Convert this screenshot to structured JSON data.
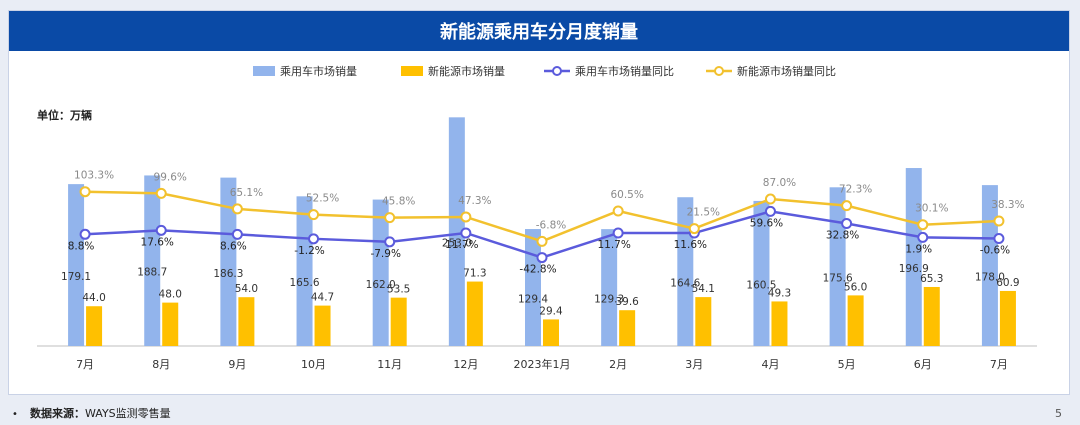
{
  "footer": {
    "bullet": "•",
    "source_label": "数据来源：",
    "source_name": "WAYS监测零售量",
    "page_number": "5"
  },
  "colors": {
    "title_bg": "#0a4aa6",
    "bar_passenger": "#92b4ec",
    "bar_nev": "#ffc000",
    "line_passenger_yoy": "#5b5bdc",
    "line_nev_yoy": "#f2c12e"
  },
  "chart_data": {
    "type": "bar",
    "title": "新能源乘用车分月度销量",
    "unit_label": "单位：万辆",
    "categories": [
      "7月",
      "8月",
      "9月",
      "10月",
      "11月",
      "12月",
      "2023年1月",
      "2月",
      "3月",
      "4月",
      "5月",
      "6月",
      "7月"
    ],
    "series": [
      {
        "name": "乘用车市场销量",
        "kind": "bar",
        "values": [
          179.1,
          188.7,
          186.3,
          165.6,
          162.0,
          253.0,
          129.4,
          129.3,
          164.6,
          160.5,
          175.6,
          196.9,
          178.0
        ],
        "labels": [
          "179.1",
          "188.7",
          "186.3",
          "165.6",
          "162.0",
          "253.0",
          "129.4",
          "129.3",
          "164.6",
          "160.5",
          "175.6",
          "196.9",
          "178.0"
        ]
      },
      {
        "name": "新能源市场销量",
        "kind": "bar",
        "values": [
          44.0,
          48.0,
          54.0,
          44.7,
          53.5,
          71.3,
          29.4,
          39.6,
          54.1,
          49.3,
          56.0,
          65.3,
          60.9
        ],
        "labels": [
          "44.0",
          "48.0",
          "54.0",
          "44.7",
          "53.5",
          "71.3",
          "29.4",
          "39.6",
          "54.1",
          "49.3",
          "56.0",
          "65.3",
          "60.9"
        ]
      },
      {
        "name": "乘用车市场销量同比",
        "kind": "line",
        "values": [
          8.8,
          17.6,
          8.6,
          -1.2,
          -7.9,
          11.7,
          -42.8,
          11.7,
          11.6,
          59.6,
          32.8,
          1.9,
          -0.6
        ],
        "labels": [
          "8.8%",
          "17.6%",
          "8.6%",
          "-1.2%",
          "-7.9%",
          "11.7%",
          "-42.8%",
          "11.7%",
          "11.6%",
          "59.6%",
          "32.8%",
          "1.9%",
          "-0.6%"
        ]
      },
      {
        "name": "新能源市场销量同比",
        "kind": "line",
        "values": [
          103.3,
          99.6,
          65.1,
          52.5,
          45.8,
          47.3,
          -6.8,
          60.5,
          21.5,
          87.0,
          72.3,
          30.1,
          38.3
        ],
        "labels": [
          "103.3%",
          "99.6%",
          "65.1%",
          "52.5%",
          "45.8%",
          "47.3%",
          "-6.8%",
          "60.5%",
          "21.5%",
          "87.0%",
          "72.3%",
          "30.1%",
          "38.3%"
        ]
      }
    ],
    "bar_ylim": [
      0,
      260
    ],
    "line_ylim": [
      -250,
      300
    ],
    "legend_position": "top"
  }
}
